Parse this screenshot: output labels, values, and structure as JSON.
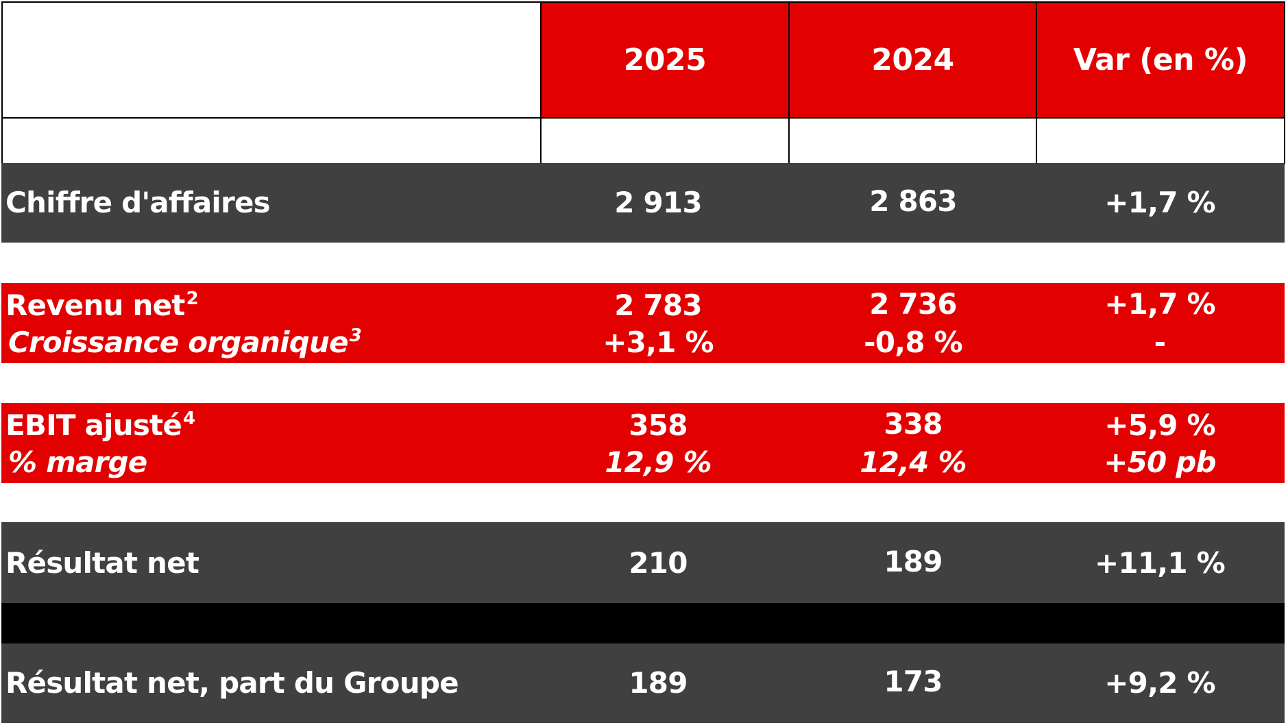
{
  "header": {
    "col_2025": "2025",
    "col_2024": "2024",
    "col_var": "Var (en %)"
  },
  "rows": {
    "chiffre_affaires": {
      "label": "Chiffre d'affaires",
      "v2025": "2 913",
      "v2024": "2 863",
      "var": "+1,7 %"
    },
    "revenu_net": {
      "label": "Revenu net",
      "note": "2",
      "v2025": "2 783",
      "v2024": "2 736",
      "var": "+1,7 %"
    },
    "croissance_organique": {
      "label": "Croissance organique",
      "note": "3",
      "v2025": "+3,1 %",
      "v2024": "-0,8 %",
      "var": "-"
    },
    "ebit_ajuste": {
      "label": "EBIT ajusté",
      "note": "4",
      "v2025": "358",
      "v2024": "338",
      "var": "+5,9 %"
    },
    "marge": {
      "label": "% marge",
      "v2025": "12,9 %",
      "v2024": "12,4 %",
      "var": "+50 pb"
    },
    "resultat_net": {
      "label": "Résultat net",
      "v2025": "210",
      "v2024": "189",
      "var": "+11,1 %"
    },
    "resultat_net_groupe": {
      "label": "Résultat net, part du Groupe",
      "v2025": "189",
      "v2024": "173",
      "var": "+9,2 %"
    }
  },
  "colors": {
    "red": "#e30000",
    "dark": "#404040",
    "black": "#000000"
  }
}
